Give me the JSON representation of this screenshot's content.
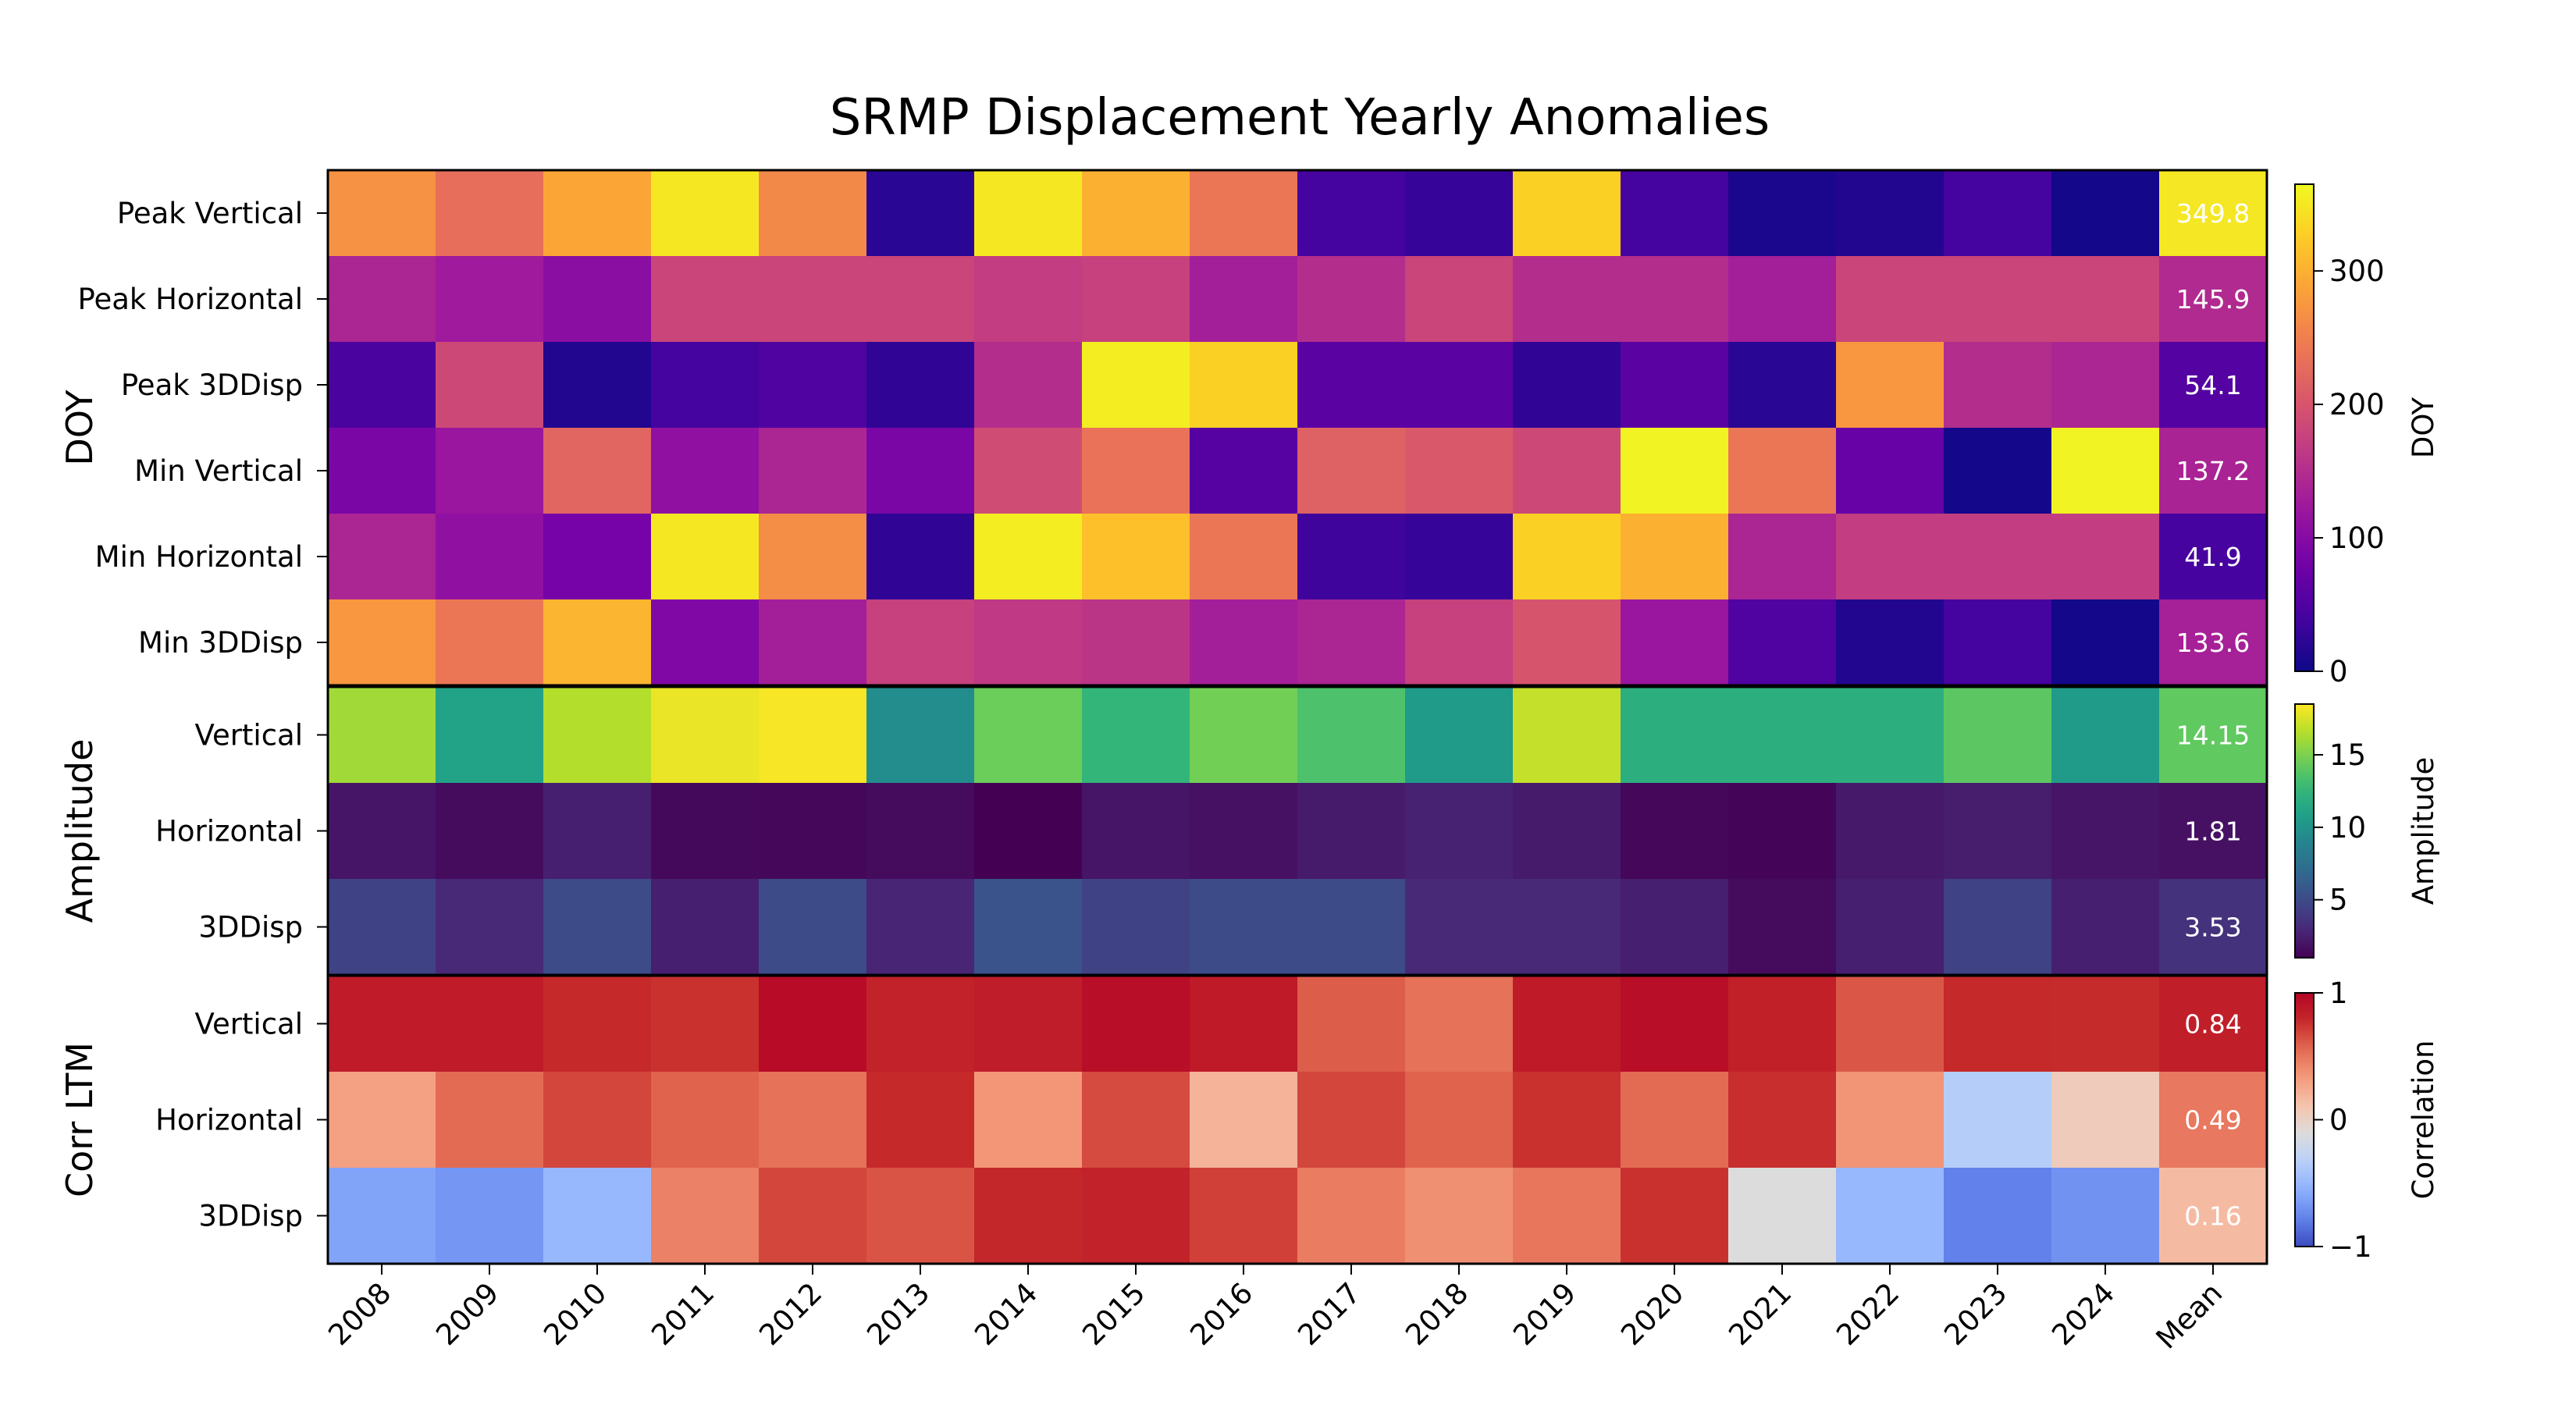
{
  "chart_data": {
    "type": "heatmap",
    "title": "SRMP Displacement Yearly Anomalies",
    "columns": [
      "2008",
      "2009",
      "2010",
      "2011",
      "2012",
      "2013",
      "2014",
      "2015",
      "2016",
      "2017",
      "2018",
      "2019",
      "2020",
      "2021",
      "2022",
      "2023",
      "2024",
      "Mean"
    ],
    "groups": [
      {
        "label": "DOY",
        "colormap": "plasma",
        "range": [
          0,
          365
        ],
        "colorbar": {
          "label": "DOY",
          "ticks": [
            0,
            100,
            200,
            300
          ]
        },
        "rows": [
          {
            "label": "Peak Vertical",
            "values": [
              270,
              230,
              290,
              350,
              260,
              20,
              350,
              300,
              240,
              40,
              30,
              330,
              40,
              10,
              15,
              40,
              5
            ],
            "mean": 349.8,
            "mean_text": "349.8"
          },
          {
            "label": "Peak Horizontal",
            "values": [
              140,
              125,
              105,
              180,
              180,
              180,
              170,
              175,
              130,
              150,
              180,
              150,
              150,
              130,
              180,
              180,
              180
            ],
            "mean": 145.9,
            "mean_text": "145.9"
          },
          {
            "label": "Peak 3DDisp",
            "values": [
              45,
              185,
              15,
              40,
              50,
              25,
              150,
              355,
              330,
              60,
              60,
              25,
              60,
              20,
              275,
              150,
              140
            ],
            "mean": 54.1,
            "mean_text": "54.1"
          },
          {
            "label": "Min Vertical",
            "values": [
              90,
              120,
              220,
              110,
              140,
              90,
              190,
              235,
              55,
              215,
              205,
              185,
              360,
              240,
              70,
              5,
              360
            ],
            "mean": 137.2,
            "mean_text": "137.2"
          },
          {
            "label": "Min Horizontal",
            "values": [
              140,
              110,
              85,
              350,
              265,
              25,
              355,
              315,
              240,
              35,
              30,
              330,
              300,
              140,
              170,
              170,
              170
            ],
            "mean": 41.9,
            "mean_text": "41.9"
          },
          {
            "label": "Min 3DDisp",
            "values": [
              275,
              240,
              305,
              95,
              130,
              175,
              165,
              160,
              130,
              140,
              175,
              200,
              120,
              50,
              15,
              40,
              5
            ],
            "mean": 133.6,
            "mean_text": "133.6"
          }
        ]
      },
      {
        "label": "Amplitude",
        "colormap": "viridis",
        "range": [
          1,
          18.5
        ],
        "colorbar": {
          "label": "Amplitude",
          "ticks": [
            5,
            10,
            15
          ]
        },
        "rows": [
          {
            "label": "Vertical",
            "values": [
              16.0,
              11.0,
              16.5,
              18.0,
              18.3,
              9.5,
              14.5,
              12.5,
              14.7,
              13.5,
              10.5,
              17.0,
              12.0,
              12.0,
              12.0,
              14.0,
              10.5
            ],
            "mean": 14.15,
            "mean_text": "14.15"
          },
          {
            "label": "Horizontal",
            "values": [
              2.0,
              1.5,
              2.5,
              1.4,
              1.3,
              1.5,
              1.0,
              2.0,
              1.8,
              2.3,
              2.6,
              2.3,
              1.3,
              1.2,
              2.2,
              2.4,
              2.0
            ],
            "mean": 1.81,
            "mean_text": "1.81"
          },
          {
            "label": "3DDisp",
            "values": [
              4.5,
              3.0,
              5.0,
              2.5,
              5.0,
              2.8,
              5.5,
              4.5,
              5.0,
              5.0,
              3.0,
              3.0,
              2.5,
              1.5,
              2.5,
              4.5,
              2.5
            ],
            "mean": 3.53,
            "mean_text": "3.53"
          }
        ]
      },
      {
        "label": "Corr LTM",
        "colormap": "coolwarm",
        "range": [
          -1,
          1
        ],
        "colorbar": {
          "label": "Correlation",
          "ticks": [
            -1,
            0,
            1
          ]
        },
        "rows": [
          {
            "label": "Vertical",
            "values": [
              0.86,
              0.86,
              0.78,
              0.75,
              0.96,
              0.82,
              0.85,
              0.94,
              0.87,
              0.6,
              0.52,
              0.87,
              0.94,
              0.83,
              0.62,
              0.78,
              0.77
            ],
            "mean": 0.84,
            "mean_text": "0.84"
          },
          {
            "label": "Horizontal",
            "values": [
              0.3,
              0.55,
              0.68,
              0.58,
              0.52,
              0.78,
              0.35,
              0.66,
              0.2,
              0.68,
              0.58,
              0.75,
              0.55,
              0.76,
              0.36,
              -0.35,
              0.05
            ],
            "mean": 0.49,
            "mean_text": "0.49"
          },
          {
            "label": "3DDisp",
            "values": [
              -0.62,
              -0.68,
              -0.5,
              0.45,
              0.68,
              0.63,
              0.79,
              0.82,
              0.7,
              0.47,
              0.38,
              0.5,
              0.75,
              -0.12,
              -0.5,
              -0.78,
              -0.7
            ],
            "mean": 0.16,
            "mean_text": "0.16"
          }
        ]
      }
    ]
  }
}
